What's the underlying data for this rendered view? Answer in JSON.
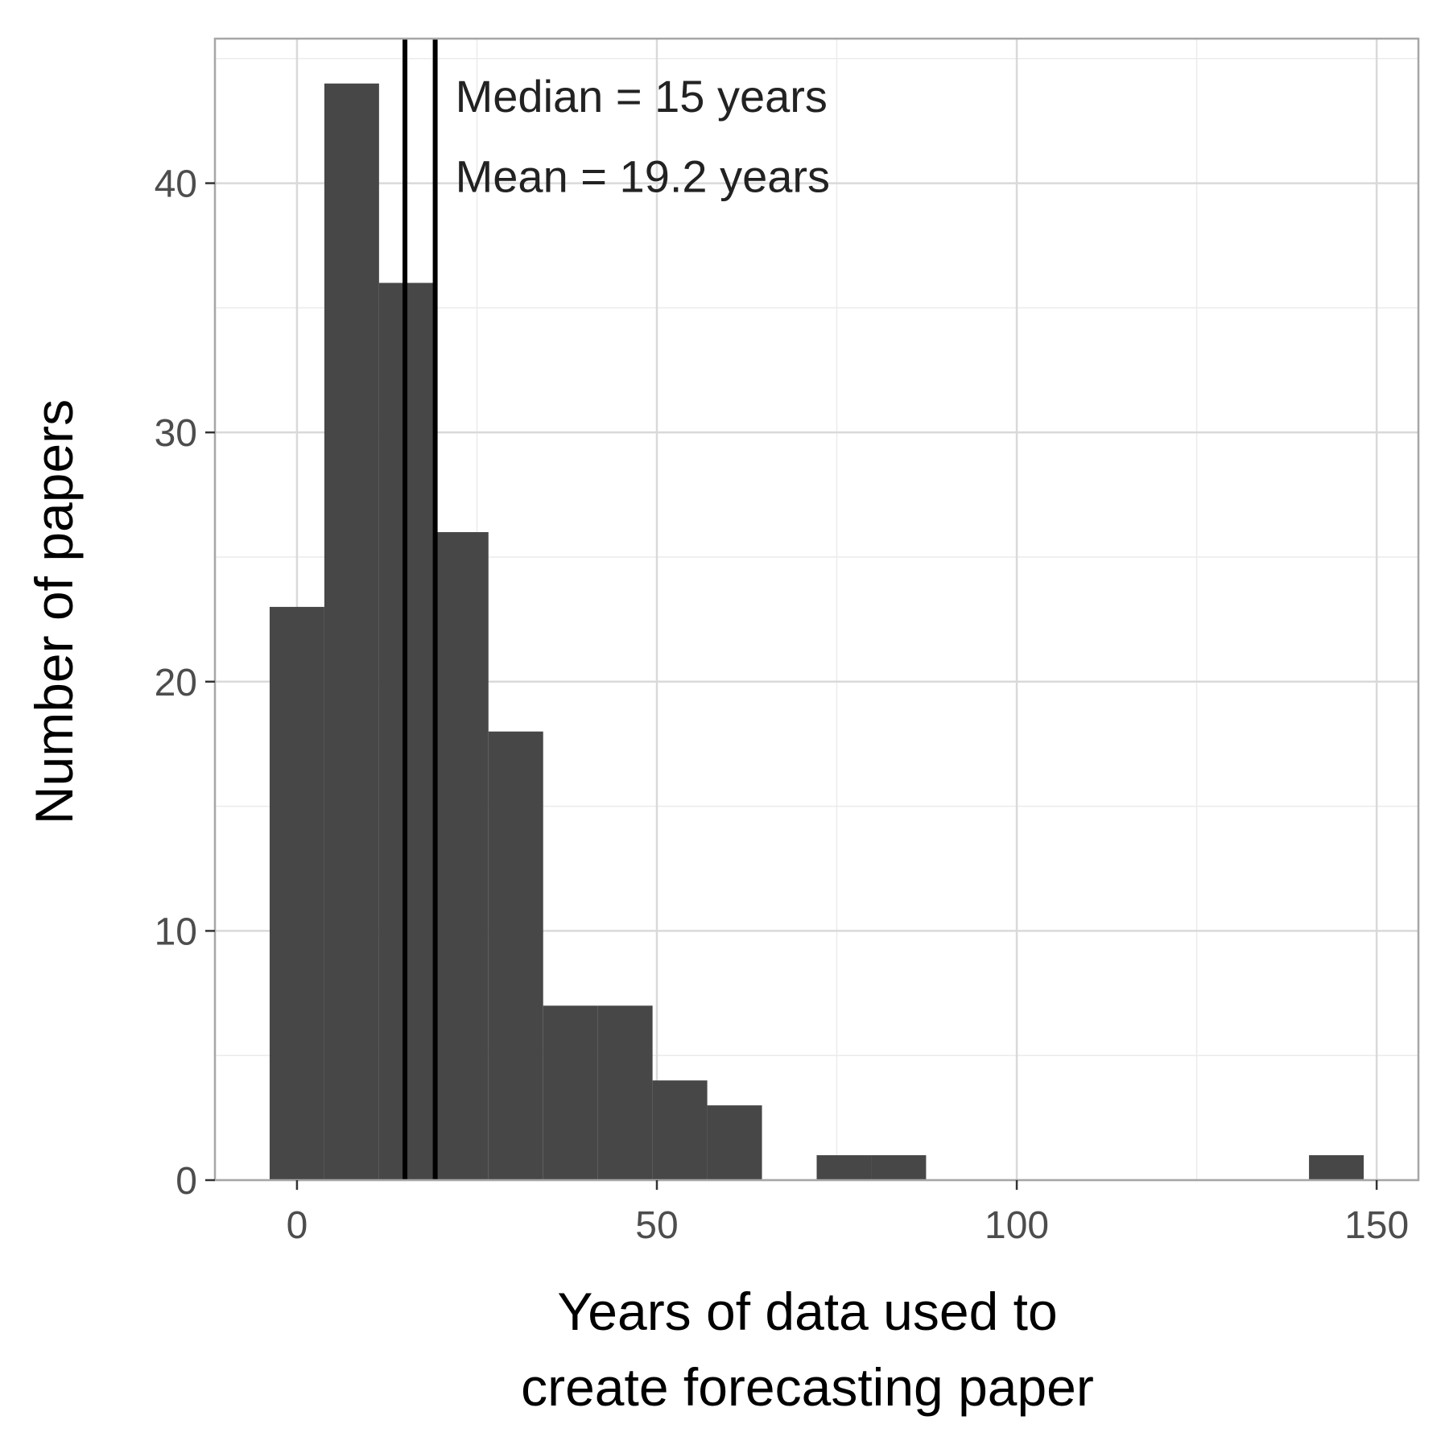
{
  "chart_data": {
    "type": "bar",
    "subtype": "histogram",
    "bin_width": 7.6,
    "bins": [
      {
        "x_start": -3.8,
        "x_end": 3.8,
        "count": 23
      },
      {
        "x_start": 3.8,
        "x_end": 11.4,
        "count": 44
      },
      {
        "x_start": 11.4,
        "x_end": 19.0,
        "count": 36
      },
      {
        "x_start": 19.0,
        "x_end": 26.6,
        "count": 26
      },
      {
        "x_start": 26.6,
        "x_end": 34.2,
        "count": 18
      },
      {
        "x_start": 34.2,
        "x_end": 41.8,
        "count": 7
      },
      {
        "x_start": 41.8,
        "x_end": 49.4,
        "count": 7
      },
      {
        "x_start": 49.4,
        "x_end": 57.0,
        "count": 4
      },
      {
        "x_start": 57.0,
        "x_end": 64.6,
        "count": 3
      },
      {
        "x_start": 72.2,
        "x_end": 79.8,
        "count": 1
      },
      {
        "x_start": 79.8,
        "x_end": 87.4,
        "count": 1
      },
      {
        "x_start": 140.6,
        "x_end": 148.2,
        "count": 1
      }
    ],
    "vlines": [
      {
        "x": 15,
        "label": "Median"
      },
      {
        "x": 19.2,
        "label": "Mean"
      }
    ],
    "annotations": [
      {
        "text": "Median = 15 years",
        "x": 22,
        "y": 43.5
      },
      {
        "text": "Mean = 19.2 years",
        "x": 22,
        "y": 40.3
      }
    ],
    "xlabel_lines": [
      "Years of data used to",
      "create forecasting paper"
    ],
    "ylabel": "Number of papers",
    "x_ticks": [
      0,
      50,
      100,
      150
    ],
    "y_ticks": [
      0,
      10,
      20,
      30,
      40
    ],
    "xlim": [
      -11.4,
      155.8
    ],
    "ylim": [
      0,
      45.8
    ],
    "grid": true,
    "legend": "none",
    "colors": {
      "bar": "#474747",
      "vline": "#000000",
      "grid_major": "#d9d9d9",
      "grid_minor": "#ebebeb",
      "border": "#a6a6a6"
    }
  }
}
